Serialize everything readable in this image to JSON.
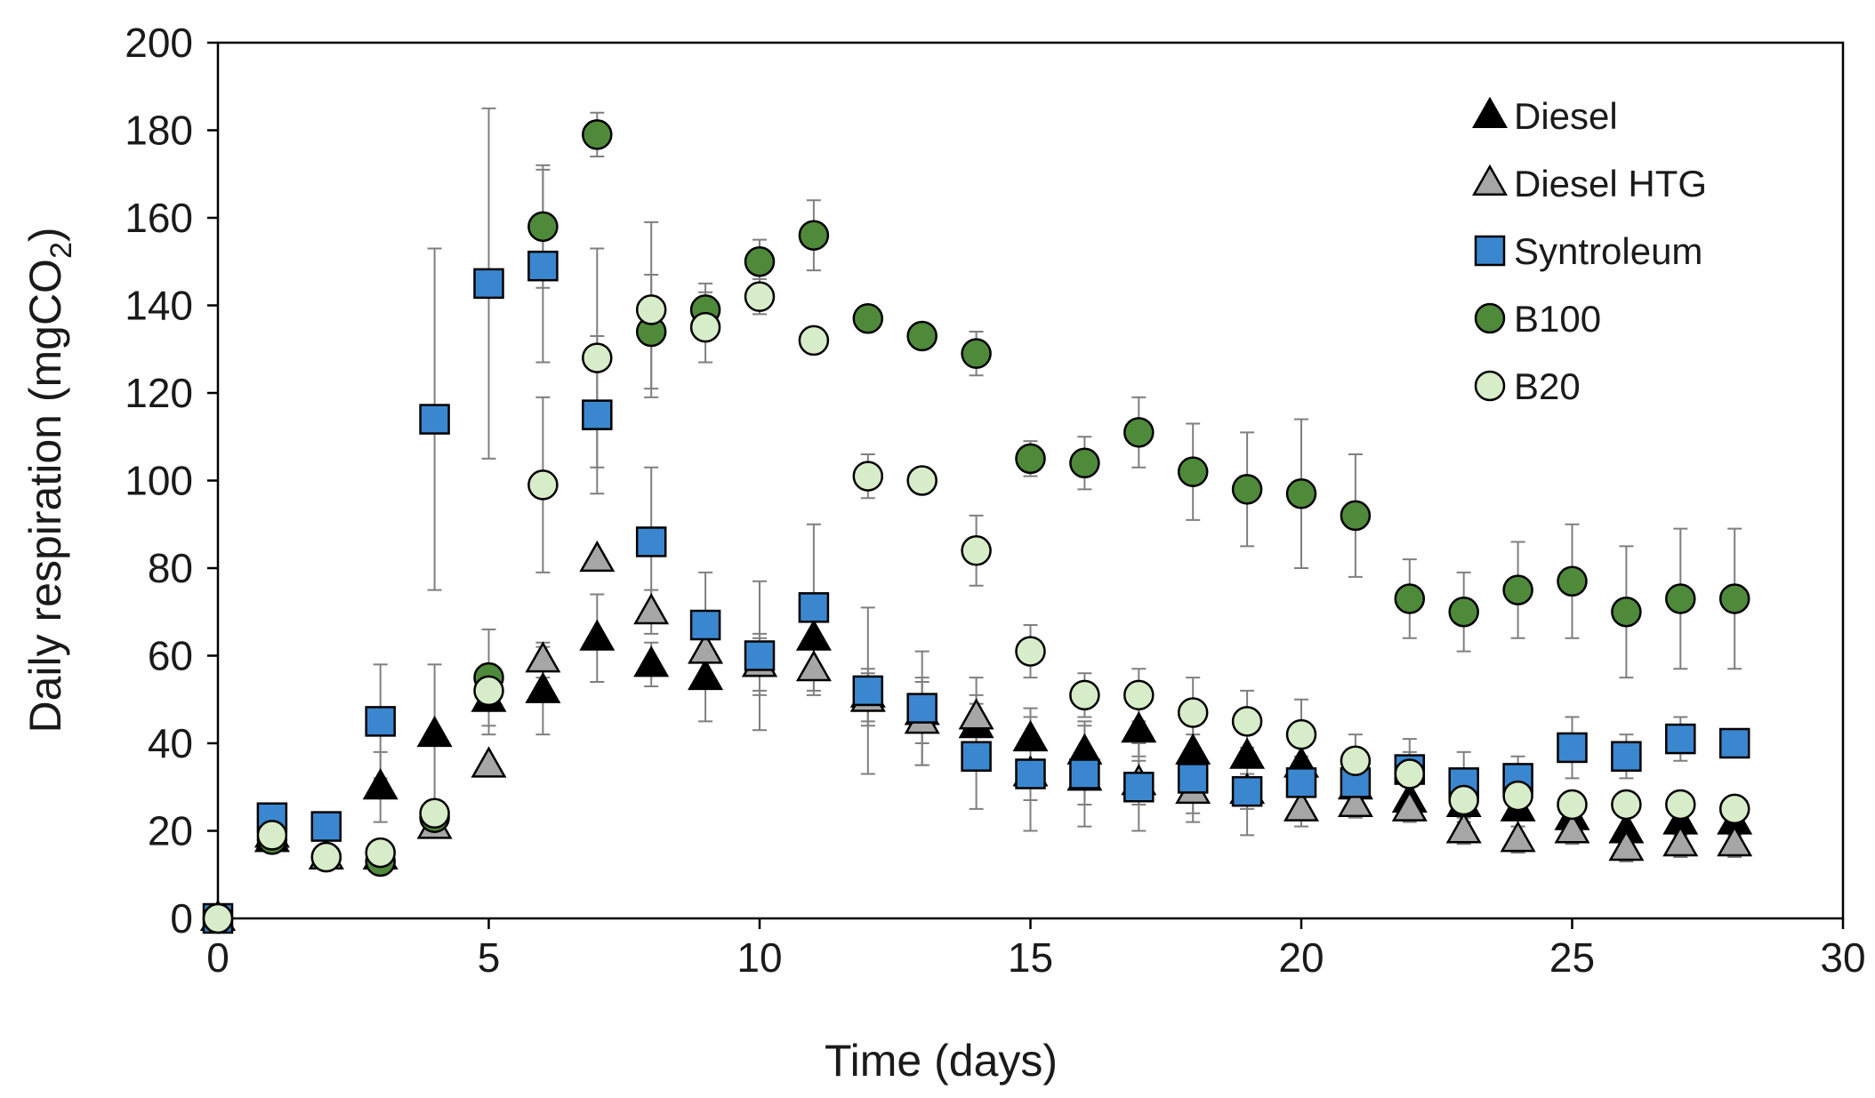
{
  "chart_data": {
    "type": "scatter",
    "title": "",
    "xlabel": "Time (days)",
    "ylabel_prefix": "Daily respiration (mgCO",
    "ylabel_sub": "2",
    "ylabel_suffix": ")",
    "xlim": [
      0,
      30
    ],
    "ylim": [
      0,
      200
    ],
    "xticks": [
      "0",
      "5",
      "10",
      "15",
      "20",
      "25",
      "30"
    ],
    "yticks": [
      "0",
      "20",
      "40",
      "60",
      "80",
      "100",
      "120",
      "140",
      "160",
      "180",
      "200"
    ],
    "grid": false,
    "legend_position": "top-right",
    "series": [
      {
        "name": "Diesel",
        "marker": "triangle",
        "color": "#000000",
        "points": [
          {
            "x": 0,
            "y": 0
          },
          {
            "x": 1,
            "y": 18
          },
          {
            "x": 2,
            "y": 14
          },
          {
            "x": 3,
            "y": 30,
            "err": 8
          },
          {
            "x": 4,
            "y": 42,
            "err": 16
          },
          {
            "x": 5,
            "y": 50,
            "err": 8
          },
          {
            "x": 6,
            "y": 52,
            "err": 10
          },
          {
            "x": 7,
            "y": 64,
            "err": 10
          },
          {
            "x": 8,
            "y": 58,
            "err": 5
          },
          {
            "x": 9,
            "y": 55,
            "err": 10
          },
          {
            "x": 10,
            "y": 58,
            "err": 6
          },
          {
            "x": 11,
            "y": 64,
            "err": 8
          },
          {
            "x": 12,
            "y": 51,
            "err": 6
          },
          {
            "x": 13,
            "y": 47,
            "err": 7
          },
          {
            "x": 14,
            "y": 44,
            "err": 7
          },
          {
            "x": 15,
            "y": 41,
            "err": 7
          },
          {
            "x": 16,
            "y": 38,
            "err": 6
          },
          {
            "x": 17,
            "y": 43,
            "err": 6
          },
          {
            "x": 18,
            "y": 38,
            "err": 6
          },
          {
            "x": 19,
            "y": 37,
            "err": 5
          },
          {
            "x": 20,
            "y": 35,
            "err": 5
          },
          {
            "x": 21,
            "y": 30,
            "err": 4
          },
          {
            "x": 22,
            "y": 27,
            "err": 4
          },
          {
            "x": 23,
            "y": 26,
            "err": 4
          },
          {
            "x": 24,
            "y": 25,
            "err": 4
          },
          {
            "x": 25,
            "y": 23,
            "err": 4
          },
          {
            "x": 26,
            "y": 20,
            "err": 3
          },
          {
            "x": 27,
            "y": 22,
            "err": 3
          },
          {
            "x": 28,
            "y": 22,
            "err": 3
          }
        ]
      },
      {
        "name": "Diesel HTG",
        "marker": "triangle",
        "color": "#a6a6a6",
        "points": [
          {
            "x": 0,
            "y": 0
          },
          {
            "x": 1,
            "y": 19
          },
          {
            "x": 2,
            "y": 14
          },
          {
            "x": 3,
            "y": 14
          },
          {
            "x": 4,
            "y": 21
          },
          {
            "x": 5,
            "y": 35
          },
          {
            "x": 6,
            "y": 59,
            "err": 4
          },
          {
            "x": 7,
            "y": 82
          },
          {
            "x": 8,
            "y": 70,
            "err": 5
          },
          {
            "x": 9,
            "y": 61,
            "err": 8
          },
          {
            "x": 10,
            "y": 58,
            "err": 7
          },
          {
            "x": 11,
            "y": 57,
            "err": 6
          },
          {
            "x": 12,
            "y": 50,
            "err": 6
          },
          {
            "x": 13,
            "y": 45,
            "err": 10
          },
          {
            "x": 14,
            "y": 46,
            "err": 9
          },
          {
            "x": 15,
            "y": 33,
            "err": 6
          },
          {
            "x": 16,
            "y": 32,
            "err": 6
          },
          {
            "x": 17,
            "y": 31,
            "err": 5
          },
          {
            "x": 18,
            "y": 29,
            "err": 5
          },
          {
            "x": 19,
            "y": 29,
            "err": 4
          },
          {
            "x": 20,
            "y": 25,
            "err": 4
          },
          {
            "x": 21,
            "y": 26,
            "err": 3
          },
          {
            "x": 22,
            "y": 25,
            "err": 3
          },
          {
            "x": 23,
            "y": 20,
            "err": 3
          },
          {
            "x": 24,
            "y": 18,
            "err": 3
          },
          {
            "x": 25,
            "y": 20,
            "err": 3
          },
          {
            "x": 26,
            "y": 16,
            "err": 3
          },
          {
            "x": 27,
            "y": 17,
            "err": 3
          },
          {
            "x": 28,
            "y": 17,
            "err": 3
          }
        ]
      },
      {
        "name": "Syntroleum",
        "marker": "square",
        "color": "#3a87cf",
        "points": [
          {
            "x": 0,
            "y": 0
          },
          {
            "x": 1,
            "y": 23
          },
          {
            "x": 2,
            "y": 21
          },
          {
            "x": 3,
            "y": 45,
            "err": 13
          },
          {
            "x": 4,
            "y": 114,
            "err": 39
          },
          {
            "x": 5,
            "y": 145,
            "err": 40
          },
          {
            "x": 6,
            "y": 149,
            "err": 22
          },
          {
            "x": 7,
            "y": 115,
            "err": 18
          },
          {
            "x": 8,
            "y": 86,
            "err": 17
          },
          {
            "x": 9,
            "y": 67,
            "err": 12
          },
          {
            "x": 10,
            "y": 60,
            "err": 17
          },
          {
            "x": 11,
            "y": 71,
            "err": 19
          },
          {
            "x": 12,
            "y": 52,
            "err": 19
          },
          {
            "x": 13,
            "y": 48,
            "err": 13
          },
          {
            "x": 14,
            "y": 37,
            "err": 12
          },
          {
            "x": 15,
            "y": 33,
            "err": 13
          },
          {
            "x": 16,
            "y": 33,
            "err": 12
          },
          {
            "x": 17,
            "y": 30,
            "err": 10
          },
          {
            "x": 18,
            "y": 32,
            "err": 10
          },
          {
            "x": 19,
            "y": 29,
            "err": 10
          },
          {
            "x": 20,
            "y": 31,
            "err": 6
          },
          {
            "x": 21,
            "y": 31,
            "err": 5
          },
          {
            "x": 22,
            "y": 34,
            "err": 7
          },
          {
            "x": 23,
            "y": 31,
            "err": 7
          },
          {
            "x": 24,
            "y": 32,
            "err": 5
          },
          {
            "x": 25,
            "y": 39,
            "err": 7
          },
          {
            "x": 26,
            "y": 37,
            "err": 5
          },
          {
            "x": 27,
            "y": 41,
            "err": 5
          },
          {
            "x": 28,
            "y": 40
          }
        ]
      },
      {
        "name": "B100",
        "marker": "circle",
        "color": "#4f8a3a",
        "points": [
          {
            "x": 0,
            "y": 0
          },
          {
            "x": 1,
            "y": 18
          },
          {
            "x": 2,
            "y": 14
          },
          {
            "x": 3,
            "y": 13
          },
          {
            "x": 4,
            "y": 23
          },
          {
            "x": 5,
            "y": 55,
            "err": 11
          },
          {
            "x": 6,
            "y": 158,
            "err": 14
          },
          {
            "x": 7,
            "y": 179,
            "err": 5
          },
          {
            "x": 8,
            "y": 134,
            "err": 13
          },
          {
            "x": 9,
            "y": 139,
            "err": 6
          },
          {
            "x": 10,
            "y": 150,
            "err": 5
          },
          {
            "x": 11,
            "y": 156,
            "err": 8
          },
          {
            "x": 12,
            "y": 137
          },
          {
            "x": 13,
            "y": 133
          },
          {
            "x": 14,
            "y": 129,
            "err": 5
          },
          {
            "x": 15,
            "y": 105,
            "err": 4
          },
          {
            "x": 16,
            "y": 104,
            "err": 6
          },
          {
            "x": 17,
            "y": 111,
            "err": 8
          },
          {
            "x": 18,
            "y": 102,
            "err": 11
          },
          {
            "x": 19,
            "y": 98,
            "err": 13
          },
          {
            "x": 20,
            "y": 97,
            "err": 17
          },
          {
            "x": 21,
            "y": 92,
            "err": 14
          },
          {
            "x": 22,
            "y": 73,
            "err": 9
          },
          {
            "x": 23,
            "y": 70,
            "err": 9
          },
          {
            "x": 24,
            "y": 75,
            "err": 11
          },
          {
            "x": 25,
            "y": 77,
            "err": 13
          },
          {
            "x": 26,
            "y": 70,
            "err": 15
          },
          {
            "x": 27,
            "y": 73,
            "err": 16
          },
          {
            "x": 28,
            "y": 73,
            "err": 16
          }
        ]
      },
      {
        "name": "B20",
        "marker": "circle",
        "color": "#d7ecc8",
        "points": [
          {
            "x": 0,
            "y": 0
          },
          {
            "x": 1,
            "y": 19
          },
          {
            "x": 2,
            "y": 14
          },
          {
            "x": 3,
            "y": 15
          },
          {
            "x": 4,
            "y": 24
          },
          {
            "x": 5,
            "y": 52
          },
          {
            "x": 6,
            "y": 99,
            "err": 20
          },
          {
            "x": 7,
            "y": 128,
            "err": 25
          },
          {
            "x": 8,
            "y": 139,
            "err": 20
          },
          {
            "x": 9,
            "y": 135,
            "err": 8
          },
          {
            "x": 10,
            "y": 142,
            "err": 4
          },
          {
            "x": 11,
            "y": 132
          },
          {
            "x": 12,
            "y": 101,
            "err": 5
          },
          {
            "x": 13,
            "y": 100
          },
          {
            "x": 14,
            "y": 84,
            "err": 8
          },
          {
            "x": 15,
            "y": 61,
            "err": 6
          },
          {
            "x": 16,
            "y": 51,
            "err": 5
          },
          {
            "x": 17,
            "y": 51,
            "err": 6
          },
          {
            "x": 18,
            "y": 47,
            "err": 8
          },
          {
            "x": 19,
            "y": 45,
            "err": 7
          },
          {
            "x": 20,
            "y": 42,
            "err": 8
          },
          {
            "x": 21,
            "y": 36,
            "err": 6
          },
          {
            "x": 22,
            "y": 33,
            "err": 5
          },
          {
            "x": 23,
            "y": 27
          },
          {
            "x": 24,
            "y": 28
          },
          {
            "x": 25,
            "y": 26
          },
          {
            "x": 26,
            "y": 26
          },
          {
            "x": 27,
            "y": 26
          },
          {
            "x": 28,
            "y": 25
          }
        ]
      }
    ]
  }
}
